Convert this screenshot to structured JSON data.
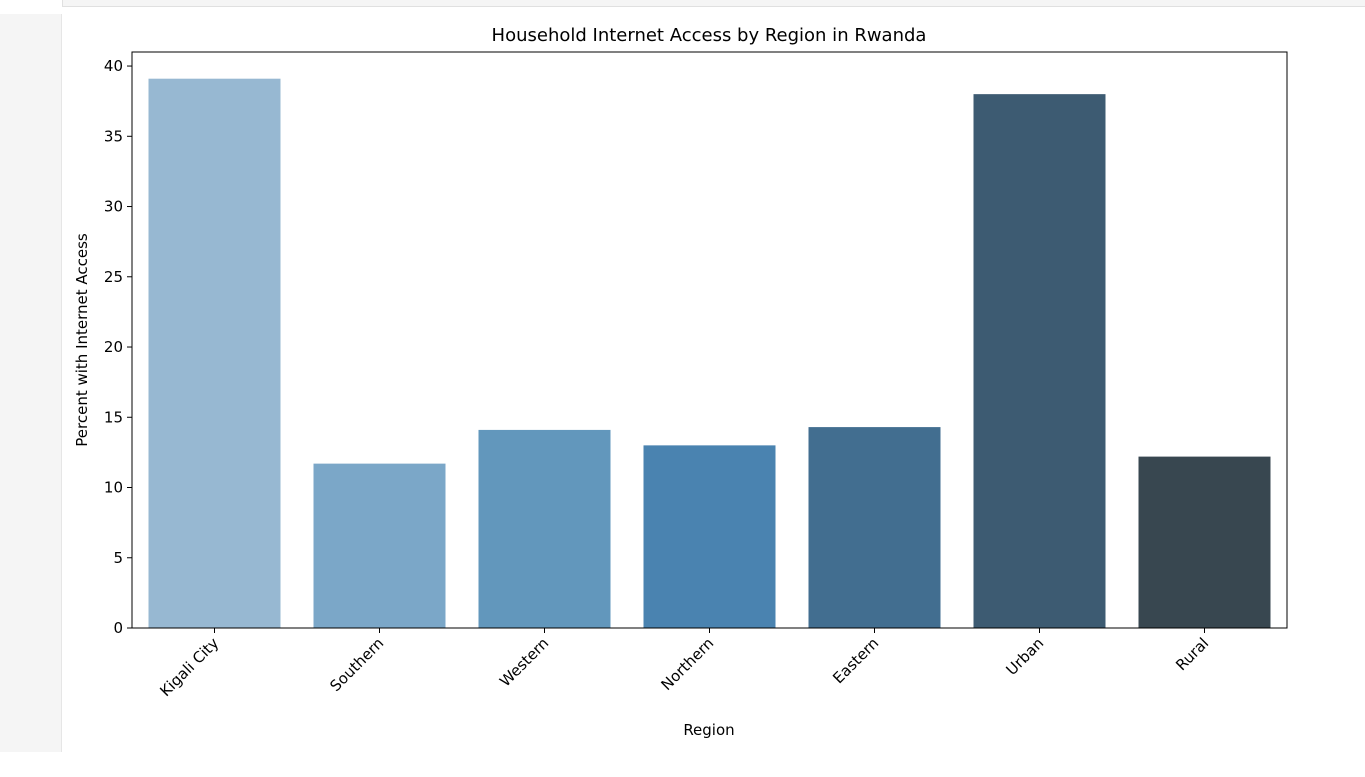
{
  "chart_data": {
    "type": "bar",
    "title": "Household Internet Access by Region in Rwanda",
    "xlabel": "Region",
    "ylabel": "Percent with Internet Access",
    "categories": [
      "Kigali City",
      "Southern",
      "Western",
      "Northern",
      "Eastern",
      "Urban",
      "Rural"
    ],
    "values": [
      39.1,
      11.7,
      14.1,
      13.0,
      14.3,
      38.0,
      12.2
    ],
    "colors": [
      "#97b8d2",
      "#7ba7c8",
      "#6297bc",
      "#4a83b0",
      "#426e90",
      "#3d5b72",
      "#384750"
    ],
    "ylim": [
      0,
      41
    ],
    "yticks": [
      0,
      5,
      10,
      15,
      20,
      25,
      30,
      35,
      40
    ],
    "grid": false,
    "legend": "none"
  }
}
